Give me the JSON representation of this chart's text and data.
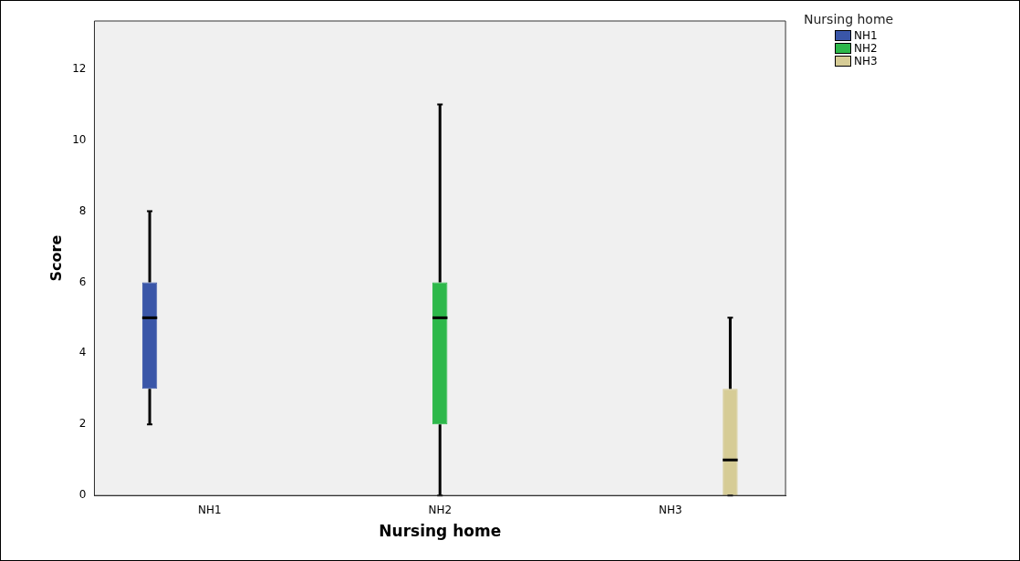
{
  "chart_data": {
    "type": "box",
    "xlabel": "Nursing home",
    "ylabel": "Score",
    "legend_title": "Nursing home",
    "legend": "top right",
    "categories": [
      "NH1",
      "NH2",
      "NH3"
    ],
    "series": [
      {
        "name": "NH1",
        "color": "#3a56a8",
        "boxes": [
          {
            "low": 2,
            "q1": 3,
            "median": 5,
            "q3": 6,
            "high": 8
          },
          null,
          null
        ]
      },
      {
        "name": "NH2",
        "color": "#2db84a",
        "boxes": [
          null,
          {
            "low": 0,
            "q1": 2,
            "median": 5,
            "q3": 6,
            "high": 11
          },
          null
        ]
      },
      {
        "name": "NH3",
        "color": "#d6cc96",
        "boxes": [
          null,
          null,
          {
            "low": 0,
            "q1": 0,
            "median": 1,
            "q3": 3,
            "high": 5
          }
        ]
      }
    ],
    "ylim": [
      0,
      13.35
    ],
    "yticks": [
      0,
      2,
      4,
      6,
      8,
      10,
      12
    ]
  }
}
